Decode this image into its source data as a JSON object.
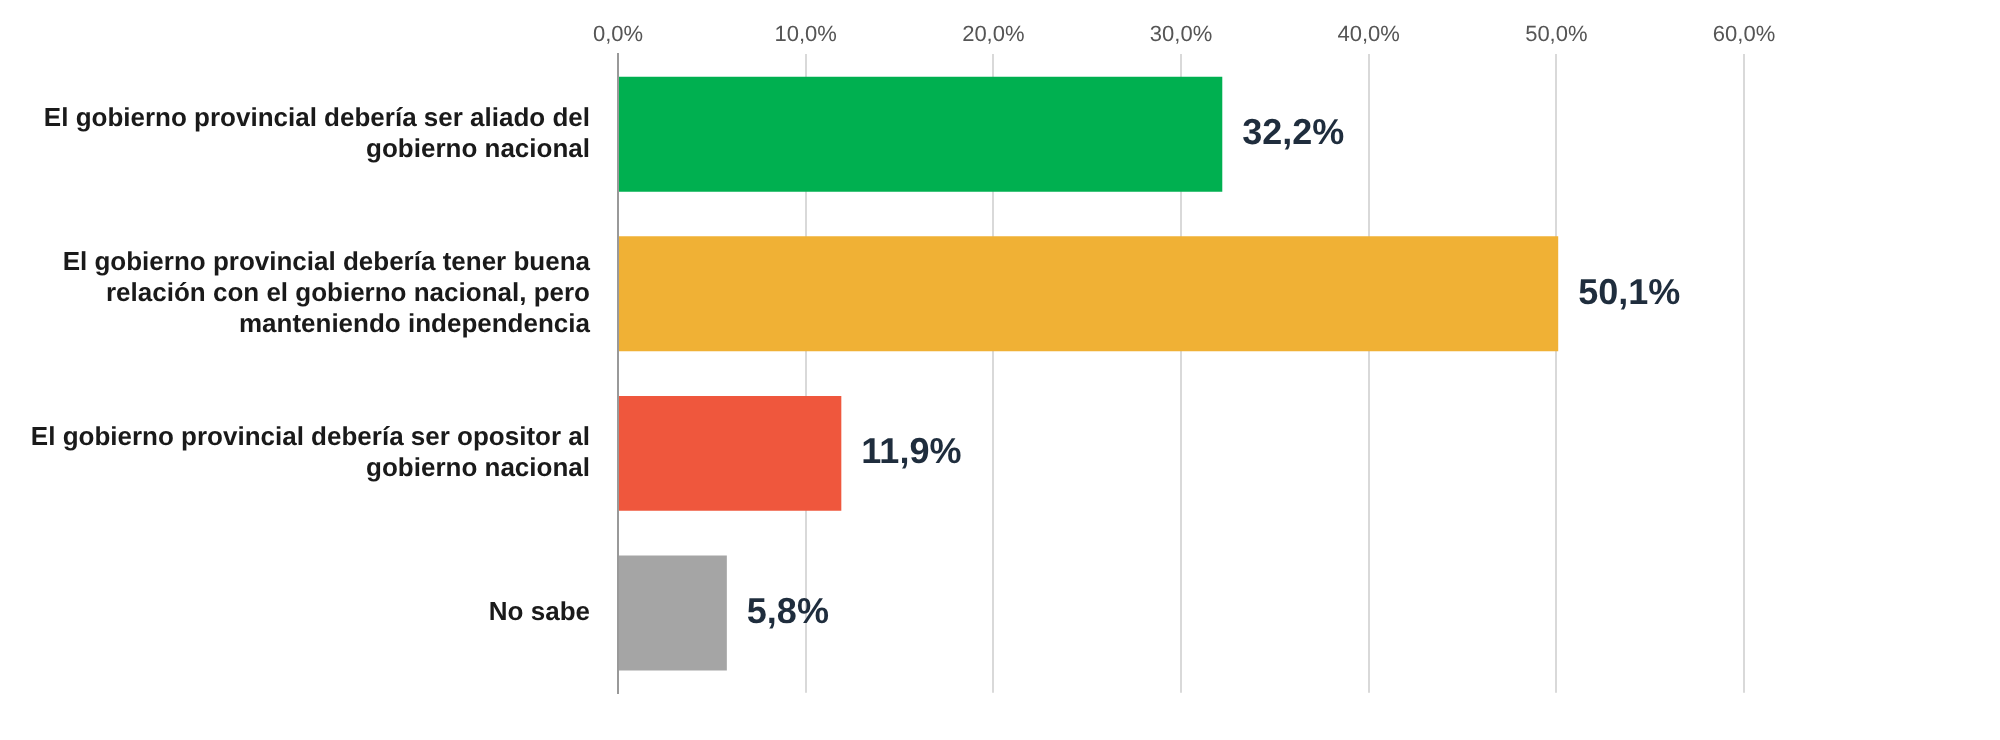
{
  "chart_data": {
    "type": "bar",
    "orientation": "horizontal",
    "categories": [
      "El gobierno provincial debería ser aliado del gobierno nacional",
      "El gobierno provincial debería tener buena relación con el gobierno nacional, pero manteniendo independencia",
      "El gobierno provincial debería ser opositor al gobierno nacional",
      "No sabe"
    ],
    "values": [
      32.2,
      50.1,
      11.9,
      5.8
    ],
    "colors": [
      "#00b050",
      "#f0b135",
      "#ef573d",
      "#a5a5a5"
    ],
    "value_labels": [
      "32,2%",
      "50,1%",
      "11,9%",
      "5,8%"
    ],
    "xlim": [
      0,
      60
    ],
    "xticks": [
      {
        "value": 0,
        "label": "0,0%"
      },
      {
        "value": 10,
        "label": "10,0%"
      },
      {
        "value": 20,
        "label": "20,0%"
      },
      {
        "value": 30,
        "label": "30,0%"
      },
      {
        "value": 40,
        "label": "40,0%"
      },
      {
        "value": 50,
        "label": "50,0%"
      },
      {
        "value": 60,
        "label": "60,0%"
      }
    ],
    "grid": "x",
    "legend": false
  }
}
